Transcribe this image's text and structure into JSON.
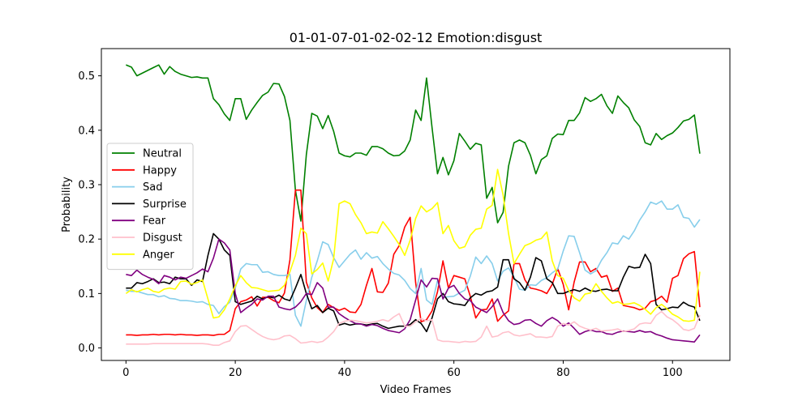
{
  "chart_data": {
    "type": "line",
    "title": "01-01-07-01-02-02-12 Emotion:disgust",
    "xlabel": "Video Frames",
    "ylabel": "Probability",
    "xlim": [
      -4.5,
      110.5
    ],
    "ylim": [
      -0.023,
      0.55
    ],
    "xticks": [
      0,
      20,
      40,
      60,
      80,
      100
    ],
    "xtick_labels": [
      "0",
      "20",
      "40",
      "60",
      "80",
      "100"
    ],
    "yticks": [
      0.0,
      0.1,
      0.2,
      0.3,
      0.4,
      0.5
    ],
    "ytick_labels": [
      "0.0",
      "0.1",
      "0.2",
      "0.3",
      "0.4",
      "0.5"
    ],
    "grid": false,
    "legend_position": "center-left",
    "series": [
      {
        "name": "Neutral",
        "color": "#008000",
        "values": [
          0.52,
          0.516,
          0.5,
          0.505,
          0.51,
          0.515,
          0.52,
          0.503,
          0.517,
          0.508,
          0.503,
          0.5,
          0.497,
          0.498,
          0.496,
          0.496,
          0.458,
          0.447,
          0.43,
          0.418,
          0.458,
          0.458,
          0.42,
          0.437,
          0.451,
          0.464,
          0.47,
          0.486,
          0.485,
          0.462,
          0.418,
          0.29,
          0.233,
          0.355,
          0.431,
          0.426,
          0.403,
          0.427,
          0.398,
          0.358,
          0.353,
          0.351,
          0.358,
          0.358,
          0.354,
          0.37,
          0.37,
          0.366,
          0.358,
          0.353,
          0.354,
          0.362,
          0.382,
          0.437,
          0.418,
          0.496,
          0.405,
          0.32,
          0.35,
          0.318,
          0.344,
          0.394,
          0.38,
          0.365,
          0.376,
          0.373,
          0.275,
          0.295,
          0.23,
          0.249,
          0.334,
          0.377,
          0.382,
          0.377,
          0.354,
          0.32,
          0.346,
          0.353,
          0.385,
          0.393,
          0.392,
          0.418,
          0.418,
          0.432,
          0.46,
          0.453,
          0.458,
          0.466,
          0.445,
          0.431,
          0.463,
          0.451,
          0.441,
          0.419,
          0.407,
          0.377,
          0.373,
          0.394,
          0.383,
          0.39,
          0.395,
          0.405,
          0.417,
          0.42,
          0.428,
          0.357
        ]
      },
      {
        "name": "Happy",
        "color": "#ff0000",
        "values": [
          0.024,
          0.024,
          0.023,
          0.024,
          0.024,
          0.025,
          0.024,
          0.025,
          0.025,
          0.024,
          0.025,
          0.024,
          0.024,
          0.023,
          0.024,
          0.024,
          0.023,
          0.025,
          0.025,
          0.032,
          0.072,
          0.085,
          0.088,
          0.094,
          0.077,
          0.093,
          0.093,
          0.087,
          0.083,
          0.101,
          0.162,
          0.29,
          0.29,
          0.121,
          0.092,
          0.074,
          0.065,
          0.08,
          0.074,
          0.069,
          0.073,
          0.066,
          0.065,
          0.08,
          0.115,
          0.146,
          0.103,
          0.102,
          0.119,
          0.172,
          0.188,
          0.222,
          0.24,
          0.12,
          0.048,
          0.052,
          0.068,
          0.103,
          0.16,
          0.11,
          0.133,
          0.13,
          0.127,
          0.095,
          0.055,
          0.07,
          0.071,
          0.09,
          0.049,
          0.06,
          0.068,
          0.155,
          0.155,
          0.125,
          0.11,
          0.108,
          0.105,
          0.1,
          0.117,
          0.146,
          0.117,
          0.07,
          0.121,
          0.158,
          0.158,
          0.14,
          0.146,
          0.13,
          0.133,
          0.104,
          0.11,
          0.078,
          0.076,
          0.074,
          0.07,
          0.073,
          0.085,
          0.088,
          0.095,
          0.084,
          0.128,
          0.133,
          0.164,
          0.173,
          0.177,
          0.075
        ]
      },
      {
        "name": "Sad",
        "color": "#87ceeb",
        "values": [
          0.106,
          0.104,
          0.104,
          0.101,
          0.098,
          0.098,
          0.094,
          0.096,
          0.091,
          0.09,
          0.087,
          0.087,
          0.086,
          0.084,
          0.085,
          0.08,
          0.078,
          0.063,
          0.076,
          0.084,
          0.11,
          0.145,
          0.155,
          0.153,
          0.153,
          0.139,
          0.14,
          0.135,
          0.133,
          0.133,
          0.135,
          0.06,
          0.04,
          0.087,
          0.13,
          0.16,
          0.195,
          0.19,
          0.166,
          0.148,
          0.16,
          0.172,
          0.18,
          0.163,
          0.175,
          0.165,
          0.168,
          0.155,
          0.145,
          0.137,
          0.134,
          0.124,
          0.109,
          0.1,
          0.146,
          0.088,
          0.08,
          0.124,
          0.093,
          0.094,
          0.095,
          0.101,
          0.106,
          0.132,
          0.167,
          0.155,
          0.169,
          0.155,
          0.123,
          0.141,
          0.147,
          0.13,
          0.108,
          0.106,
          0.116,
          0.115,
          0.124,
          0.129,
          0.138,
          0.145,
          0.178,
          0.206,
          0.205,
          0.175,
          0.143,
          0.136,
          0.142,
          0.161,
          0.175,
          0.193,
          0.191,
          0.206,
          0.2,
          0.215,
          0.235,
          0.25,
          0.268,
          0.264,
          0.27,
          0.255,
          0.255,
          0.263,
          0.24,
          0.238,
          0.222,
          0.236
        ]
      },
      {
        "name": "Surprise",
        "color": "#000000",
        "values": [
          0.11,
          0.11,
          0.12,
          0.118,
          0.122,
          0.127,
          0.12,
          0.121,
          0.118,
          0.13,
          0.127,
          0.127,
          0.115,
          0.125,
          0.122,
          0.17,
          0.21,
          0.2,
          0.18,
          0.17,
          0.085,
          0.08,
          0.083,
          0.086,
          0.095,
          0.09,
          0.094,
          0.092,
          0.097,
          0.09,
          0.087,
          0.11,
          0.135,
          0.1,
          0.072,
          0.078,
          0.065,
          0.073,
          0.068,
          0.042,
          0.045,
          0.042,
          0.044,
          0.044,
          0.042,
          0.044,
          0.045,
          0.04,
          0.036,
          0.038,
          0.04,
          0.04,
          0.043,
          0.052,
          0.045,
          0.03,
          0.055,
          0.09,
          0.1,
          0.085,
          0.081,
          0.08,
          0.078,
          0.092,
          0.1,
          0.097,
          0.103,
          0.105,
          0.112,
          0.162,
          0.162,
          0.127,
          0.12,
          0.106,
          0.13,
          0.166,
          0.16,
          0.127,
          0.12,
          0.1,
          0.1,
          0.104,
          0.107,
          0.104,
          0.11,
          0.105,
          0.104,
          0.107,
          0.108,
          0.105,
          0.105,
          0.13,
          0.15,
          0.147,
          0.148,
          0.172,
          0.155,
          0.08,
          0.07,
          0.072,
          0.075,
          0.074,
          0.084,
          0.078,
          0.075,
          0.05
        ]
      },
      {
        "name": "Fear",
        "color": "#800080",
        "values": [
          0.135,
          0.133,
          0.143,
          0.135,
          0.13,
          0.126,
          0.118,
          0.133,
          0.13,
          0.125,
          0.13,
          0.128,
          0.133,
          0.138,
          0.145,
          0.14,
          0.165,
          0.2,
          0.193,
          0.18,
          0.1,
          0.065,
          0.073,
          0.08,
          0.09,
          0.088,
          0.095,
          0.095,
          0.075,
          0.072,
          0.07,
          0.075,
          0.085,
          0.1,
          0.098,
          0.12,
          0.11,
          0.075,
          0.075,
          0.063,
          0.056,
          0.05,
          0.045,
          0.044,
          0.04,
          0.043,
          0.041,
          0.036,
          0.032,
          0.03,
          0.028,
          0.035,
          0.052,
          0.088,
          0.125,
          0.112,
          0.128,
          0.127,
          0.09,
          0.11,
          0.115,
          0.1,
          0.09,
          0.087,
          0.075,
          0.07,
          0.065,
          0.076,
          0.09,
          0.065,
          0.05,
          0.043,
          0.045,
          0.051,
          0.052,
          0.045,
          0.04,
          0.05,
          0.056,
          0.05,
          0.04,
          0.046,
          0.036,
          0.025,
          0.03,
          0.033,
          0.03,
          0.03,
          0.026,
          0.025,
          0.029,
          0.031,
          0.03,
          0.029,
          0.032,
          0.029,
          0.03,
          0.025,
          0.022,
          0.018,
          0.015,
          0.014,
          0.013,
          0.012,
          0.011,
          0.024
        ]
      },
      {
        "name": "Disgust",
        "color": "#ffc0cb",
        "values": [
          0.007,
          0.007,
          0.007,
          0.007,
          0.007,
          0.008,
          0.008,
          0.008,
          0.008,
          0.008,
          0.008,
          0.008,
          0.008,
          0.008,
          0.008,
          0.007,
          0.005,
          0.005,
          0.01,
          0.013,
          0.03,
          0.04,
          0.041,
          0.034,
          0.027,
          0.021,
          0.017,
          0.015,
          0.017,
          0.022,
          0.023,
          0.017,
          0.009,
          0.01,
          0.012,
          0.01,
          0.012,
          0.02,
          0.03,
          0.045,
          0.049,
          0.051,
          0.05,
          0.048,
          0.046,
          0.047,
          0.049,
          0.052,
          0.049,
          0.057,
          0.063,
          0.04,
          0.04,
          0.048,
          0.054,
          0.05,
          0.052,
          0.015,
          0.012,
          0.012,
          0.011,
          0.01,
          0.012,
          0.011,
          0.012,
          0.02,
          0.04,
          0.02,
          0.022,
          0.028,
          0.03,
          0.024,
          0.022,
          0.024,
          0.026,
          0.02,
          0.02,
          0.019,
          0.021,
          0.04,
          0.045,
          0.042,
          0.048,
          0.04,
          0.036,
          0.033,
          0.036,
          0.031,
          0.032,
          0.033,
          0.035,
          0.03,
          0.032,
          0.035,
          0.044,
          0.046,
          0.045,
          0.06,
          0.067,
          0.057,
          0.052,
          0.044,
          0.034,
          0.032,
          0.036,
          0.06
        ]
      },
      {
        "name": "Anger",
        "color": "#ffff00",
        "values": [
          0.1,
          0.107,
          0.103,
          0.107,
          0.11,
          0.104,
          0.102,
          0.108,
          0.11,
          0.108,
          0.122,
          0.123,
          0.117,
          0.12,
          0.125,
          0.09,
          0.055,
          0.057,
          0.07,
          0.09,
          0.114,
          0.133,
          0.12,
          0.111,
          0.11,
          0.107,
          0.104,
          0.105,
          0.106,
          0.115,
          0.14,
          0.17,
          0.22,
          0.21,
          0.136,
          0.144,
          0.156,
          0.123,
          0.164,
          0.265,
          0.27,
          0.265,
          0.245,
          0.23,
          0.21,
          0.213,
          0.211,
          0.232,
          0.219,
          0.205,
          0.19,
          0.17,
          0.198,
          0.238,
          0.261,
          0.25,
          0.256,
          0.267,
          0.21,
          0.225,
          0.197,
          0.183,
          0.186,
          0.207,
          0.218,
          0.22,
          0.255,
          0.262,
          0.328,
          0.281,
          0.21,
          0.155,
          0.172,
          0.188,
          0.192,
          0.198,
          0.201,
          0.213,
          0.16,
          0.133,
          0.128,
          0.106,
          0.092,
          0.086,
          0.099,
          0.101,
          0.118,
          0.104,
          0.092,
          0.082,
          0.085,
          0.08,
          0.081,
          0.083,
          0.078,
          0.071,
          0.062,
          0.074,
          0.08,
          0.072,
          0.062,
          0.057,
          0.05,
          0.049,
          0.051,
          0.14
        ]
      }
    ]
  }
}
